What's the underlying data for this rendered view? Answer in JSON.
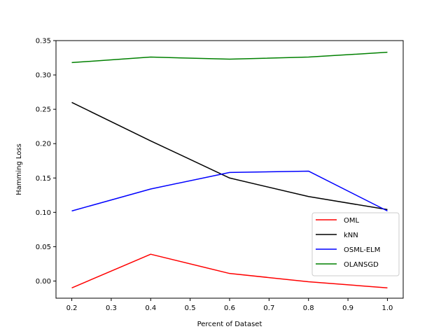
{
  "chart_data": {
    "type": "line",
    "title": "",
    "xlabel": "Percent of Dataset",
    "ylabel": "Hamming Loss",
    "xlim": [
      0.16,
      1.04
    ],
    "ylim": [
      -0.025,
      0.35
    ],
    "xticks": [
      0.2,
      0.3,
      0.4,
      0.5,
      0.6,
      0.7,
      0.8,
      0.9,
      1.0
    ],
    "xtick_labels": [
      "0.2",
      "0.3",
      "0.4",
      "0.5",
      "0.6",
      "0.7",
      "0.8",
      "0.9",
      "1.0"
    ],
    "yticks": [
      0.0,
      0.05,
      0.1,
      0.15,
      0.2,
      0.25,
      0.3,
      0.35
    ],
    "ytick_labels": [
      "0.00",
      "0.05",
      "0.10",
      "0.15",
      "0.20",
      "0.25",
      "0.30",
      "0.35"
    ],
    "grid": false,
    "legend_position": "lower-right",
    "x": [
      0.2,
      0.4,
      0.6,
      0.8,
      1.0
    ],
    "series": [
      {
        "name": "OML",
        "color": "#ff0000",
        "values": [
          -0.01,
          0.039,
          0.011,
          -0.001,
          -0.01
        ]
      },
      {
        "name": "kNN",
        "color": "#000000",
        "values": [
          0.26,
          0.204,
          0.15,
          0.123,
          0.104
        ]
      },
      {
        "name": "OSML-ELM",
        "color": "#0000ff",
        "values": [
          0.102,
          0.134,
          0.158,
          0.16,
          0.102
        ]
      },
      {
        "name": "OLANSGD",
        "color": "#008000",
        "values": [
          0.318,
          0.326,
          0.323,
          0.326,
          0.333
        ]
      }
    ]
  }
}
